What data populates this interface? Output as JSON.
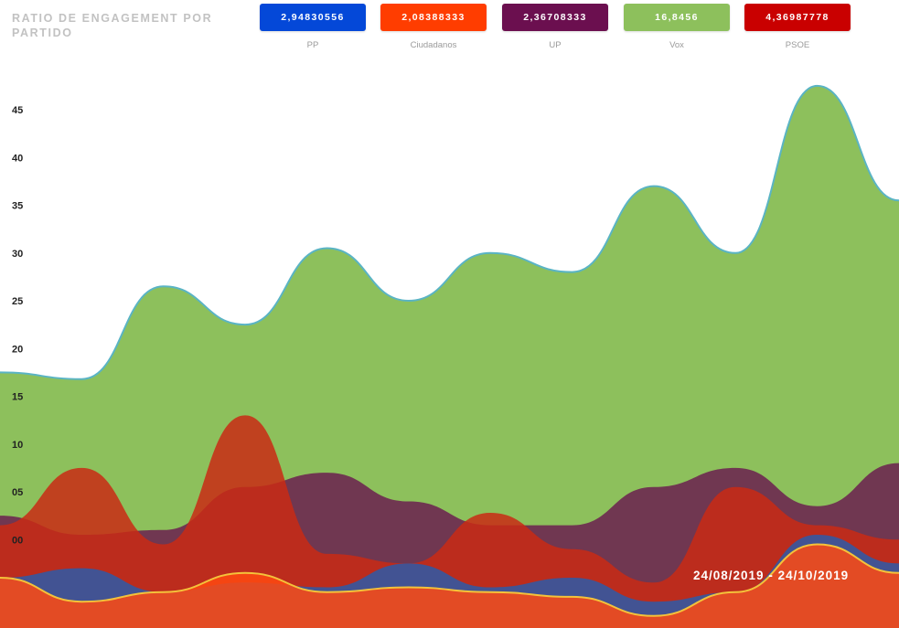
{
  "header": {
    "title": "RATIO DE ENGAGEMENT POR PARTIDO"
  },
  "legend": [
    {
      "name": "PP",
      "value": "2,94830556",
      "color": "#0448d8"
    },
    {
      "name": "Ciudadanos",
      "value": "2,08388333",
      "color": "#ff3d00"
    },
    {
      "name": "UP",
      "value": "2,36708333",
      "color": "#6b0f4f"
    },
    {
      "name": "Vox",
      "value": "16,8456",
      "color": "#8dc05c"
    },
    {
      "name": "PSOE",
      "value": "4,36987778",
      "color": "#c90000"
    }
  ],
  "footer": {
    "date_range": "24/08/2019 - 24/10/2019"
  },
  "chart_data": {
    "type": "area",
    "title": "RATIO DE ENGAGEMENT POR PARTIDO",
    "xlabel": "",
    "ylabel": "",
    "x_range_label": "24/08/2019 - 24/10/2019",
    "yticks": [
      "00",
      "05",
      "10",
      "15",
      "20",
      "25",
      "30",
      "35",
      "40",
      "45"
    ],
    "ylim": [
      -9.5,
      48
    ],
    "x": [
      0,
      1,
      2,
      3,
      4,
      5,
      6,
      7,
      8,
      9,
      10,
      11
    ],
    "series": [
      {
        "name": "Vox",
        "color": "#8dc05c",
        "stroke": "#5ab4c4",
        "values": [
          17.5,
          16.8,
          26.5,
          22.5,
          30.5,
          25.0,
          30.0,
          28.0,
          37.0,
          30.0,
          47.5,
          35.5
        ]
      },
      {
        "name": "UP",
        "color": "#6b1f4f",
        "values": [
          2.5,
          0.5,
          1.0,
          5.5,
          7.0,
          4.0,
          1.5,
          1.5,
          5.5,
          7.5,
          3.5,
          8.0
        ]
      },
      {
        "name": "PSOE",
        "color": "#c92a14",
        "values": [
          1.5,
          7.5,
          -0.5,
          13.0,
          -1.5,
          -2.5,
          2.8,
          -1.0,
          -4.5,
          5.5,
          1.5,
          0.0
        ]
      },
      {
        "name": "PP",
        "color": "#2d5ba8",
        "values": [
          -4.0,
          -3.0,
          -5.5,
          -4.5,
          -5.0,
          -2.5,
          -5.0,
          -4.0,
          -6.5,
          -5.5,
          0.5,
          -2.5
        ]
      },
      {
        "name": "Ciudadanos",
        "color": "#ff4a10",
        "stroke": "#f4c23a",
        "values": [
          -4.0,
          -6.5,
          -5.5,
          -3.5,
          -5.5,
          -5.0,
          -5.5,
          -6.0,
          -8.0,
          -5.5,
          -0.5,
          -3.5
        ]
      }
    ]
  }
}
